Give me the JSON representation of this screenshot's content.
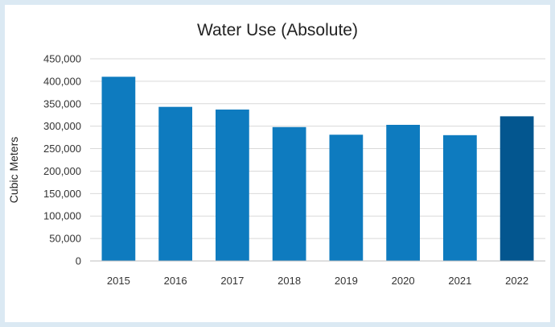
{
  "chart_data": {
    "type": "bar",
    "title": "Water Use (Absolute)",
    "xlabel": "",
    "ylabel": "Cubic Meters",
    "categories": [
      "2015",
      "2016",
      "2017",
      "2018",
      "2019",
      "2020",
      "2021",
      "2022"
    ],
    "values": [
      410000,
      343000,
      337000,
      298000,
      281000,
      303000,
      280000,
      322000
    ],
    "ylim": [
      0,
      450000
    ],
    "yticks": [
      0,
      50000,
      100000,
      150000,
      200000,
      250000,
      300000,
      350000,
      400000,
      450000
    ],
    "ytick_labels": [
      "0",
      "50,000",
      "100,000",
      "150,000",
      "200,000",
      "250,000",
      "300,000",
      "350,000",
      "400,000",
      "450,000"
    ],
    "grid": true,
    "colors": {
      "bar": "#0e7bbf",
      "highlight_bar": "#03568f",
      "grid": "#d9d9d9",
      "axis": "#bfbfbf"
    },
    "highlight_category": "2022"
  }
}
